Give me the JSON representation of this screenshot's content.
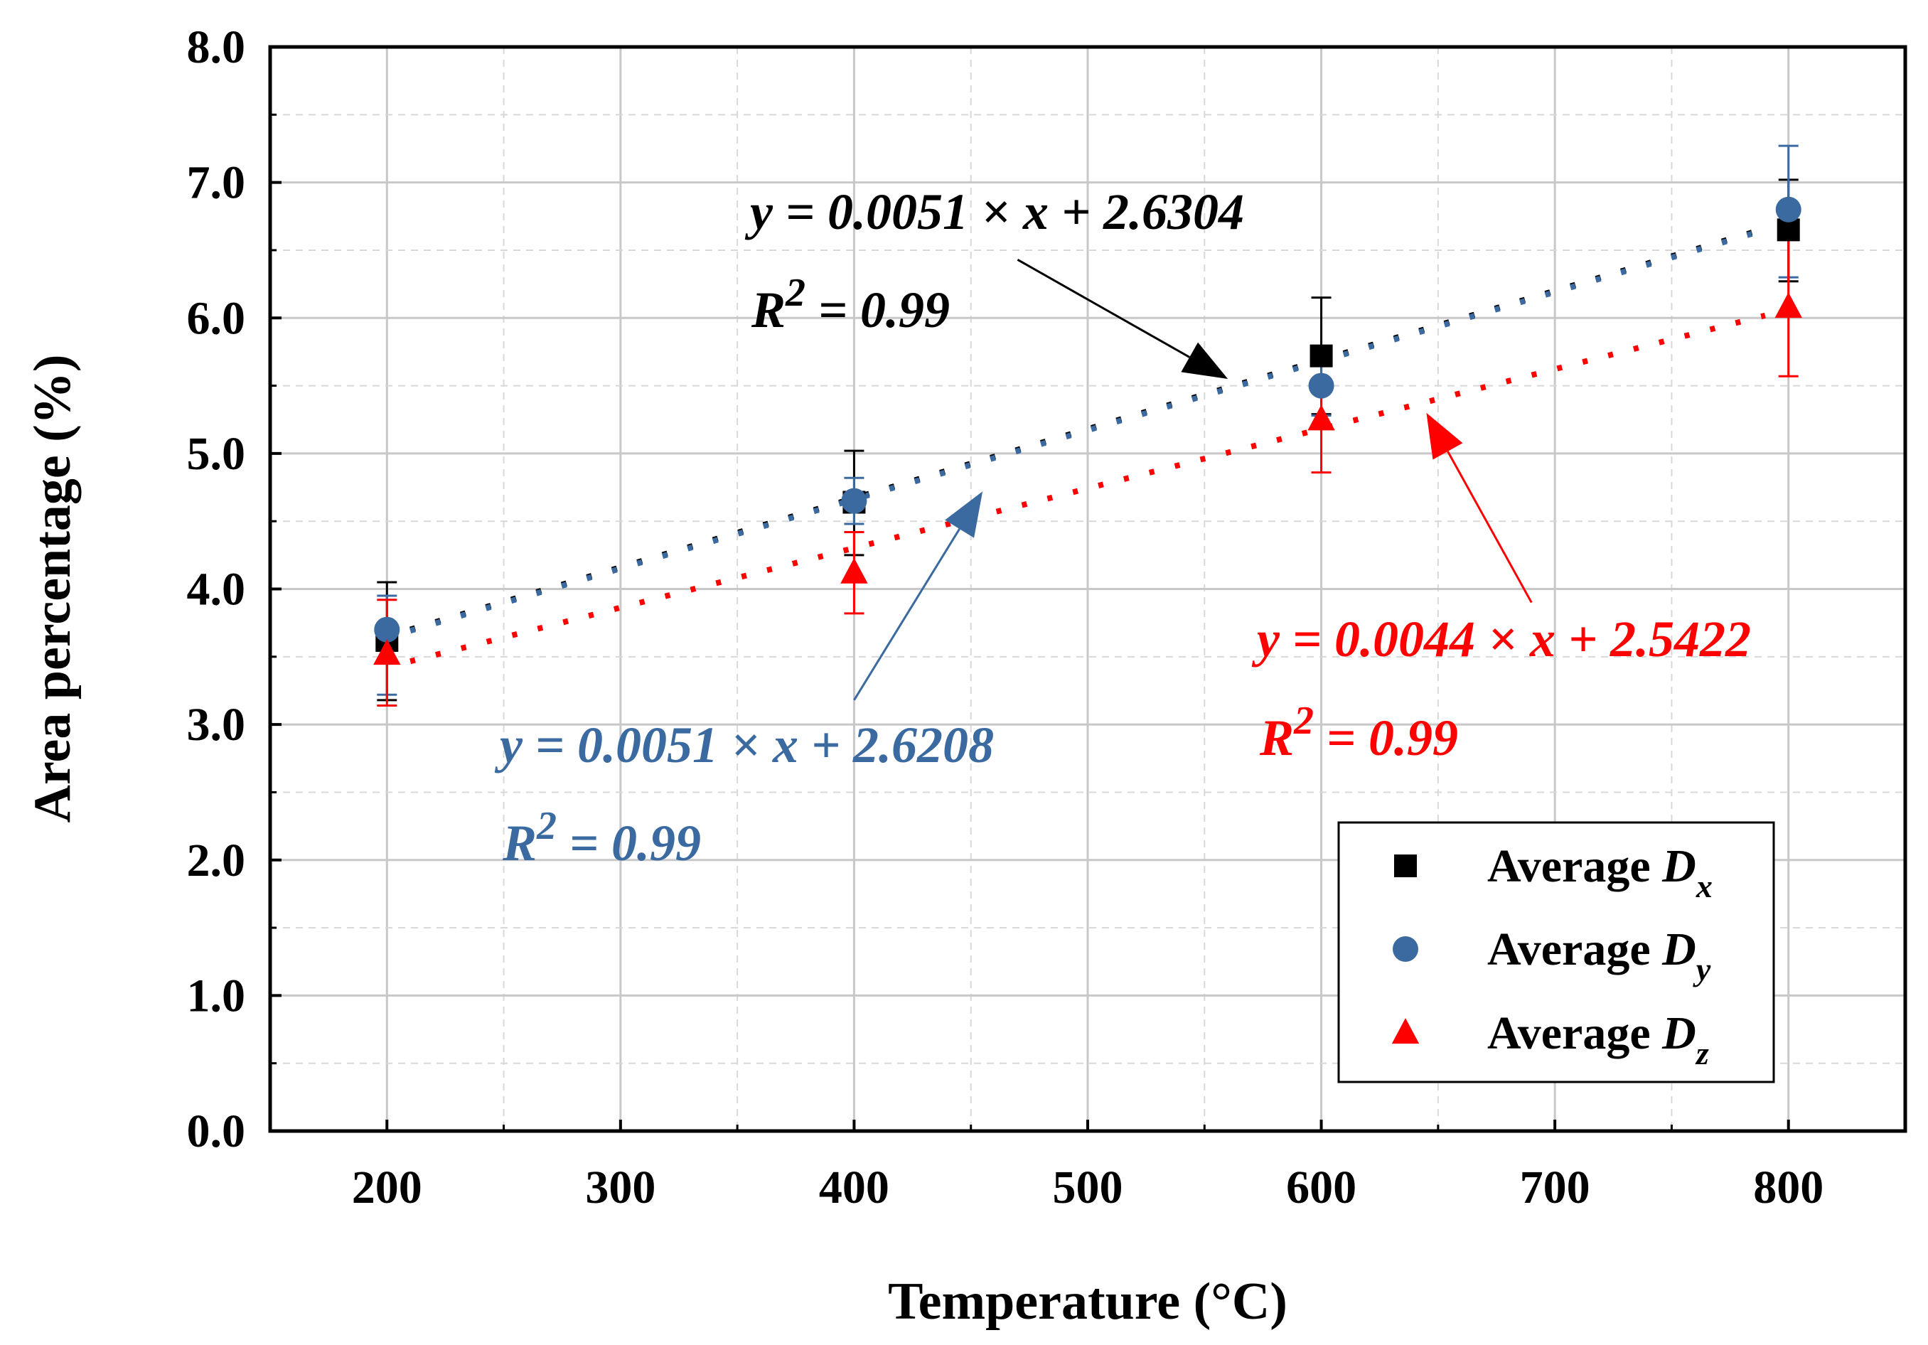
{
  "chart_data": {
    "type": "scatter",
    "xlabel": "Temperature (°C)",
    "ylabel": "Area percentage (%)",
    "xlim": [
      150,
      850
    ],
    "ylim": [
      0,
      8
    ],
    "xticks": [
      200,
      300,
      400,
      500,
      600,
      700,
      800
    ],
    "xtick_labels": [
      "200",
      "300",
      "400",
      "500",
      "600",
      "700",
      "800"
    ],
    "yticks": [
      0,
      1,
      2,
      3,
      4,
      5,
      6,
      7,
      8
    ],
    "ytick_labels": [
      "0.0",
      "1.0",
      "2.0",
      "3.0",
      "4.0",
      "5.0",
      "6.0",
      "7.0",
      "8.0"
    ],
    "grid": true,
    "legend_position": "bottom-right",
    "series": [
      {
        "name": "Average D",
        "subscript": "x",
        "marker": "square",
        "color": "#000000",
        "x": [
          200,
          400,
          600,
          800
        ],
        "y": [
          3.62,
          4.64,
          5.72,
          6.65
        ],
        "err_low": [
          3.18,
          4.25,
          5.29,
          6.27
        ],
        "err_high": [
          4.05,
          5.02,
          6.15,
          7.02
        ],
        "fit": {
          "slope": 0.0051,
          "intercept": 2.6304,
          "x_range": [
            210,
            790
          ]
        }
      },
      {
        "name": "Average D",
        "subscript": "y",
        "marker": "circle",
        "color": "#3a6aa0",
        "x": [
          200,
          400,
          600,
          800
        ],
        "y": [
          3.7,
          4.65,
          5.5,
          6.8
        ],
        "err_low": [
          3.22,
          4.48,
          5.28,
          6.3
        ],
        "err_high": [
          3.95,
          4.82,
          5.72,
          7.27
        ],
        "fit": {
          "slope": 0.0051,
          "intercept": 2.6208,
          "x_range": [
            210,
            790
          ]
        }
      },
      {
        "name": "Average D",
        "subscript": "z",
        "marker": "triangle",
        "color": "#ff0000",
        "x": [
          200,
          400,
          600,
          800
        ],
        "y": [
          3.52,
          4.12,
          5.25,
          6.08
        ],
        "err_low": [
          3.14,
          3.82,
          4.86,
          5.57
        ],
        "err_high": [
          3.92,
          4.42,
          5.55,
          6.58
        ],
        "fit": {
          "slope": 0.0044,
          "intercept": 2.5422,
          "x_range": [
            210,
            790
          ]
        }
      }
    ],
    "annotations": [
      {
        "color": "#000000",
        "equation": "y = 0.0051 × x + 2.6304",
        "r2_label": "R",
        "r2_sup": "2",
        "r2_value": " = 0.99",
        "arrow_from": [
          470,
          6.43
        ],
        "arrow_to": [
          560,
          5.55
        ]
      },
      {
        "color": "#3a6aa0",
        "equation": "y = 0.0051 × x + 2.6208",
        "r2_label": "R",
        "r2_sup": "2",
        "r2_value": " = 0.99",
        "arrow_from": [
          400,
          3.18
        ],
        "arrow_to": [
          455,
          4.72
        ]
      },
      {
        "color": "#ff0000",
        "equation": "y = 0.0044 × x + 2.5422",
        "r2_label": "R",
        "r2_sup": "2",
        "r2_value": " = 0.99",
        "arrow_from": [
          690,
          3.9
        ],
        "arrow_to": [
          645,
          5.3
        ]
      }
    ]
  }
}
